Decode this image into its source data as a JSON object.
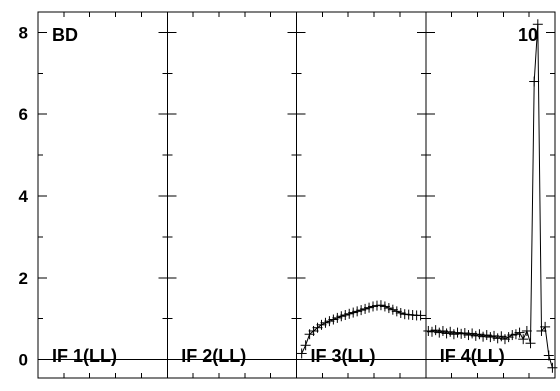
{
  "chart_data": {
    "type": "line",
    "ylim": [
      -0.45,
      8.5
    ],
    "yticks": [
      0,
      2,
      4,
      6,
      8
    ],
    "ytick_labels": [
      "0",
      "2",
      "4",
      "6",
      "8"
    ],
    "grid": false,
    "annotations": {
      "top_left": "BD",
      "top_right": "10"
    },
    "panels": [
      {
        "label": "IF 1(LL)",
        "series": []
      },
      {
        "label": "IF 2(LL)",
        "series": []
      },
      {
        "label": "IF 3(LL)",
        "series": [
          {
            "x": [
              0,
              1,
              2,
              3,
              4,
              5,
              6,
              7,
              8,
              9,
              10,
              11,
              12,
              13,
              14,
              15,
              16,
              17,
              18,
              19,
              20,
              21,
              22,
              23,
              24,
              25,
              26,
              27,
              28,
              29,
              30
            ],
            "values": [
              0.15,
              0.35,
              0.62,
              0.7,
              0.78,
              0.85,
              0.9,
              0.94,
              0.98,
              1.02,
              1.06,
              1.09,
              1.12,
              1.15,
              1.18,
              1.21,
              1.24,
              1.27,
              1.3,
              1.32,
              1.33,
              1.3,
              1.26,
              1.22,
              1.18,
              1.14,
              1.11,
              1.1,
              1.09,
              1.08,
              1.08
            ]
          }
        ]
      },
      {
        "label": "IF 4(LL)",
        "series": [
          {
            "x": [
              0,
              1,
              2,
              3,
              4,
              5,
              6,
              7,
              8,
              9,
              10,
              11,
              12,
              13,
              14,
              15,
              16,
              17,
              18,
              19,
              20,
              21,
              22,
              23,
              24,
              25,
              26,
              27,
              28,
              29,
              30,
              31,
              32,
              33,
              34
            ],
            "values": [
              0.7,
              0.68,
              0.72,
              0.66,
              0.7,
              0.64,
              0.68,
              0.62,
              0.66,
              0.63,
              0.65,
              0.6,
              0.64,
              0.58,
              0.62,
              0.56,
              0.6,
              0.55,
              0.58,
              0.52,
              0.57,
              0.5,
              0.55,
              0.6,
              0.62,
              0.66,
              0.5,
              0.7,
              0.4,
              6.8,
              8.2,
              0.7,
              0.8,
              0.1,
              -0.2
            ]
          }
        ]
      }
    ]
  }
}
